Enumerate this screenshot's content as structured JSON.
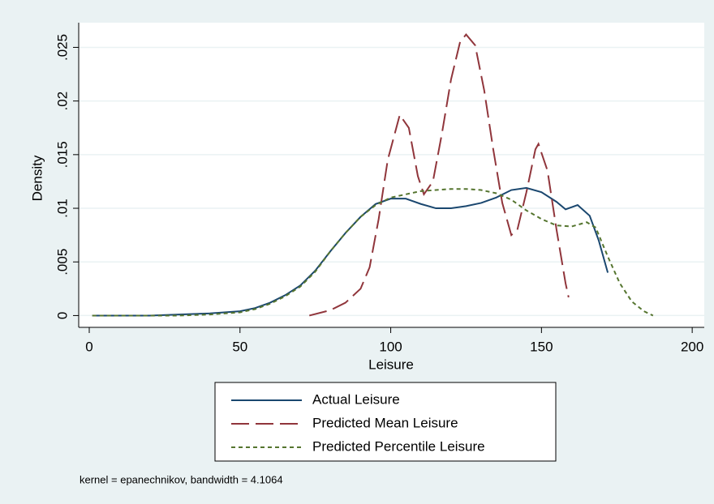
{
  "chart_data": {
    "type": "line",
    "x_label": "Leisure",
    "y_label": "Density",
    "note": "kernel = epanechnikov, bandwidth = 4.1064",
    "xlim": [
      -3.5,
      204
    ],
    "ylim": [
      -0.0011,
      0.0273
    ],
    "xticks": [
      0,
      50,
      100,
      150,
      200
    ],
    "yticks": [
      0,
      {
        "value": 0.005,
        "label": ".005"
      },
      {
        "value": 0.01,
        "label": ".01"
      },
      {
        "value": 0.015,
        "label": ".015"
      },
      {
        "value": 0.02,
        "label": ".02"
      },
      {
        "value": 0.025,
        "label": ".025"
      }
    ],
    "grid": true,
    "legend": "bottom",
    "series": [
      {
        "name": "Actual Leisure",
        "color": "#1a476f",
        "dash": "solid",
        "x": [
          1,
          20,
          30,
          40,
          50,
          55,
          60,
          65,
          70,
          75,
          80,
          85,
          90,
          95,
          100,
          105,
          110,
          115,
          120,
          125,
          130,
          135,
          140,
          145,
          150,
          155,
          158,
          162,
          166,
          169,
          172
        ],
        "values": [
          0,
          0,
          0.0001,
          0.0002,
          0.0004,
          0.0007,
          0.0012,
          0.0019,
          0.0028,
          0.0042,
          0.006,
          0.0077,
          0.0092,
          0.0104,
          0.0109,
          0.0109,
          0.0104,
          0.01,
          0.01,
          0.0102,
          0.0105,
          0.011,
          0.0117,
          0.0119,
          0.0115,
          0.0106,
          0.0099,
          0.0103,
          0.0093,
          0.007,
          0.004
        ]
      },
      {
        "name": "Predicted Mean Leisure",
        "color": "#90353b",
        "dash": "dashed",
        "x": [
          73,
          80,
          85,
          90,
          93,
          96,
          99,
          103,
          106,
          109,
          111,
          114,
          117,
          120,
          123,
          125,
          128,
          131,
          134,
          137,
          140,
          142,
          145,
          148,
          149,
          152,
          155,
          158,
          159
        ],
        "values": [
          0,
          0.0005,
          0.0012,
          0.0025,
          0.0045,
          0.009,
          0.0145,
          0.0187,
          0.0175,
          0.013,
          0.0113,
          0.0125,
          0.017,
          0.022,
          0.0255,
          0.0262,
          0.0252,
          0.021,
          0.0155,
          0.0105,
          0.0075,
          0.008,
          0.0115,
          0.0155,
          0.016,
          0.0135,
          0.008,
          0.003,
          0.0017
        ]
      },
      {
        "name": "Predicted Percentile Leisure",
        "color": "#55752f",
        "dash": "dotted",
        "x": [
          1,
          30,
          40,
          50,
          55,
          60,
          65,
          70,
          75,
          80,
          85,
          90,
          95,
          100,
          105,
          110,
          115,
          120,
          125,
          130,
          135,
          140,
          145,
          150,
          155,
          160,
          165,
          168,
          172,
          176,
          180,
          184,
          187
        ],
        "values": [
          0,
          0,
          0.0001,
          0.0003,
          0.0006,
          0.0011,
          0.0018,
          0.0027,
          0.0041,
          0.006,
          0.0077,
          0.0092,
          0.0103,
          0.011,
          0.0113,
          0.0116,
          0.0117,
          0.0118,
          0.0118,
          0.0117,
          0.0114,
          0.0108,
          0.0098,
          0.009,
          0.0084,
          0.0083,
          0.0087,
          0.0082,
          0.0055,
          0.003,
          0.0013,
          0.0004,
          0
        ]
      }
    ]
  }
}
